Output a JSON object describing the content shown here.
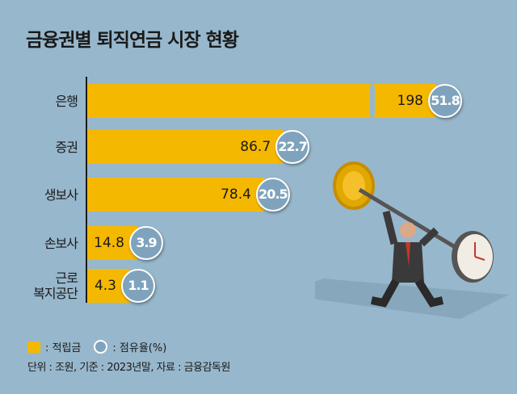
{
  "chart_data": {
    "type": "bar",
    "orientation": "horizontal",
    "title": "금융권별 퇴직연금 시장 현황",
    "categories": [
      "은행",
      "증권",
      "생보사",
      "손보사",
      "근로\n복지공단"
    ],
    "series": [
      {
        "name": "적립금",
        "values": [
          198,
          86.7,
          78.4,
          14.8,
          4.3
        ],
        "color": "#f5b800"
      },
      {
        "name": "점유율(%)",
        "values": [
          51.8,
          22.7,
          20.5,
          3.9,
          1.1
        ],
        "color": "#7fa3bd"
      }
    ],
    "broken_axis_category": "은행",
    "legend": {
      "position": "bottom-left",
      "items": [
        ": 적립금",
        ": 점유율(%)"
      ]
    },
    "note": "단위 : 조원, 기준 : 2023년말, 자료 : 금융감독원"
  }
}
